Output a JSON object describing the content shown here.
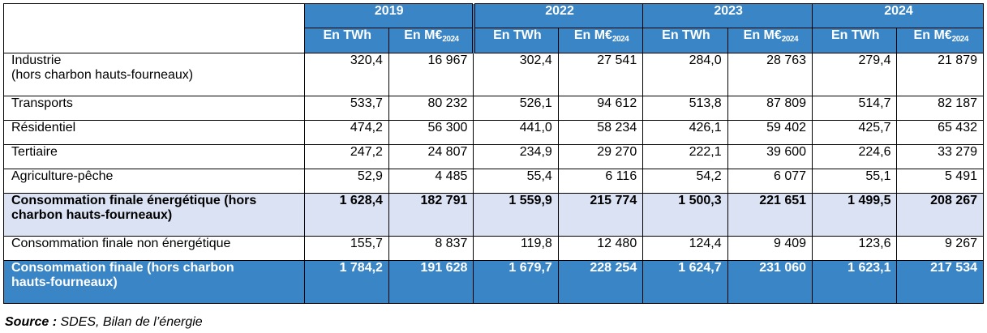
{
  "header": {
    "years": [
      "2019",
      "2022",
      "2023",
      "2024"
    ],
    "unit_twh": "En TWh",
    "unit_meur": "En M€",
    "unit_meur_sub": "2024"
  },
  "rows": [
    {
      "label": "Industrie",
      "label2": "(hors charbon hauts-fourneaux)",
      "values": [
        "320,4",
        "16 967",
        "302,4",
        "27 541",
        "284,0",
        "28 763",
        "279,4",
        "21 879"
      ]
    },
    {
      "label": "Transports",
      "values": [
        "533,7",
        "80 232",
        "526,1",
        "94 612",
        "513,8",
        "87 809",
        "514,7",
        "82 187"
      ]
    },
    {
      "label": "Résidentiel",
      "values": [
        "474,2",
        "56 300",
        "441,0",
        "58 234",
        "426,1",
        "59 402",
        "425,7",
        "65 432"
      ]
    },
    {
      "label": "Tertiaire",
      "values": [
        "247,2",
        "24 807",
        "234,9",
        "29 270",
        "222,1",
        "39 600",
        "224,6",
        "33 279"
      ]
    },
    {
      "label": "Agriculture-pêche",
      "values": [
        "52,9",
        "4 485",
        "55,4",
        "6 116",
        "54,2",
        "6 077",
        "55,1",
        "5 491"
      ]
    },
    {
      "label": "Consommation finale énergétique (hors",
      "label2": "charbon hauts-fourneaux)",
      "values": [
        "1 628,4",
        "182 791",
        "1 559,9",
        "215 774",
        "1 500,3",
        "221 651",
        "1 499,5",
        "208 267"
      ]
    },
    {
      "label": "Consommation finale non énergétique",
      "values": [
        "155,7",
        "8 837",
        "119,8",
        "12 480",
        "124,4",
        "9 409",
        "123,6",
        "9 267"
      ]
    },
    {
      "label": "Consommation finale (hors charbon",
      "label2": "hauts-fourneaux)",
      "values": [
        "1 784,2",
        "191 628",
        "1 679,7",
        "228 254",
        "1 624,7",
        "231 060",
        "1 623,1",
        "217 534"
      ]
    }
  ],
  "source": {
    "prefix": "Source :",
    "text": " SDES, Bilan de l’énergie"
  }
}
